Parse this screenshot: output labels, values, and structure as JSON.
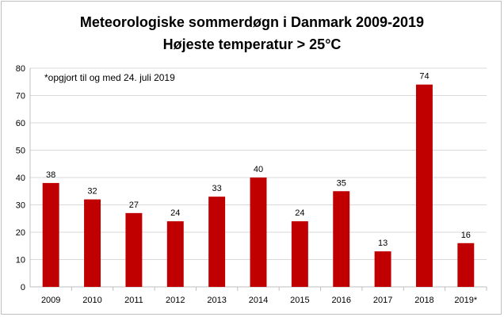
{
  "chart_data": {
    "type": "bar",
    "title": "Meteorologiske sommerdøgn i Danmark 2009-2019",
    "subtitle": "Højeste temperatur > 25°C",
    "annotation": "*opgjort til og med 24. juli 2019",
    "categories": [
      "2009",
      "2010",
      "2011",
      "2012",
      "2013",
      "2014",
      "2015",
      "2016",
      "2017",
      "2018",
      "2019*"
    ],
    "values": [
      38,
      32,
      27,
      24,
      33,
      40,
      24,
      35,
      13,
      74,
      16
    ],
    "ylim": [
      0,
      80
    ],
    "yticks": [
      0,
      10,
      20,
      30,
      40,
      50,
      60,
      70,
      80
    ],
    "grid": true,
    "legend": "none",
    "bar_color": "#c00000",
    "grid_color": "#d9d9d9"
  }
}
